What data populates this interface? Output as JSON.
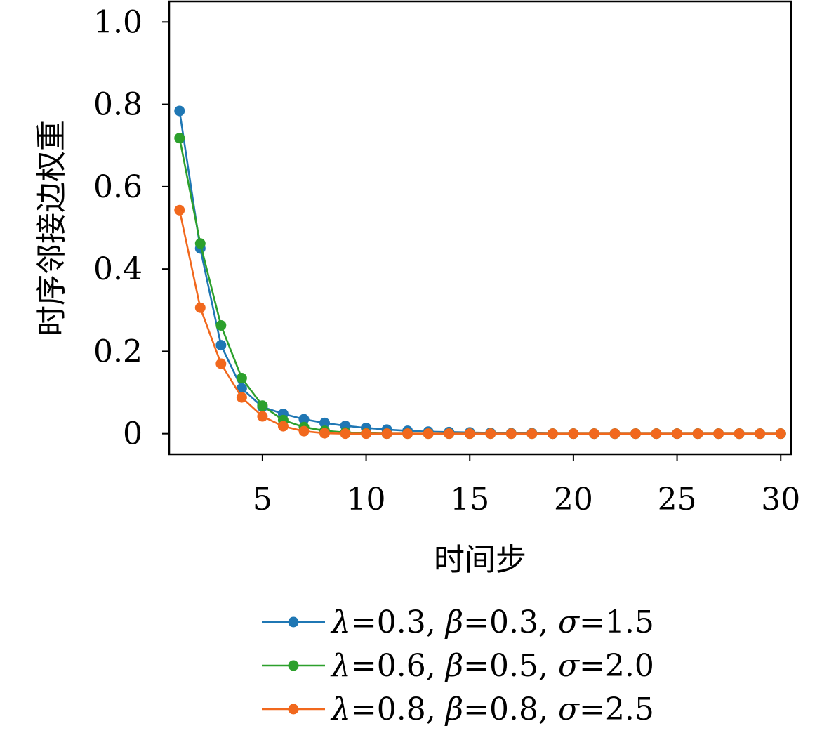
{
  "chart_data": {
    "type": "line",
    "xlabel": "时间步",
    "ylabel": "时序邻接边权重",
    "xlim": [
      0.5,
      30.5
    ],
    "ylim": [
      -0.05,
      1.05
    ],
    "x_ticks": [
      5,
      10,
      15,
      20,
      25,
      30
    ],
    "x_tick_labels": [
      "5",
      "10",
      "15",
      "20",
      "25",
      "30"
    ],
    "y_ticks": [
      0,
      0.2,
      0.4,
      0.6,
      0.8,
      1.0
    ],
    "y_tick_labels": [
      "0",
      "0.2",
      "0.4",
      "0.6",
      "0.8",
      "1.0"
    ],
    "grid": false,
    "legend_position": "bottom",
    "x": [
      1,
      2,
      3,
      4,
      5,
      6,
      7,
      8,
      9,
      10,
      11,
      12,
      13,
      14,
      15,
      16,
      17,
      18,
      19,
      20,
      21,
      22,
      23,
      24,
      25,
      26,
      27,
      28,
      29,
      30
    ],
    "series": [
      {
        "name": "λ=0.3, β=0.3, σ=1.5",
        "lambda": "0.3",
        "beta": "0.3",
        "sigma": "1.5",
        "color": "#1f77b4",
        "values": [
          0.784,
          0.45,
          0.215,
          0.11,
          0.065,
          0.048,
          0.035,
          0.026,
          0.019,
          0.014,
          0.01,
          0.007,
          0.005,
          0.004,
          0.003,
          0.002,
          0.001,
          0.001,
          0,
          0,
          0,
          0,
          0,
          0,
          0,
          0,
          0,
          0,
          0,
          0
        ]
      },
      {
        "name": "λ=0.6, β=0.5, σ=2.0",
        "lambda": "0.6",
        "beta": "0.5",
        "sigma": "2.0",
        "color": "#2ca02c",
        "values": [
          0.718,
          0.462,
          0.263,
          0.135,
          0.068,
          0.033,
          0.016,
          0.007,
          0.003,
          0.001,
          0,
          0,
          0,
          0,
          0,
          0,
          0,
          0,
          0,
          0,
          0,
          0,
          0,
          0,
          0,
          0,
          0,
          0,
          0,
          0
        ]
      },
      {
        "name": "λ=0.8, β=0.8, σ=2.5",
        "lambda": "0.8",
        "beta": "0.8",
        "sigma": "2.5",
        "color": "#f1681d",
        "values": [
          0.543,
          0.306,
          0.17,
          0.088,
          0.042,
          0.018,
          0.006,
          0.001,
          0,
          0,
          0,
          0,
          0,
          0,
          0,
          0,
          0,
          0,
          0,
          0,
          0,
          0,
          0,
          0,
          0,
          0,
          0,
          0,
          0,
          0
        ]
      }
    ]
  }
}
